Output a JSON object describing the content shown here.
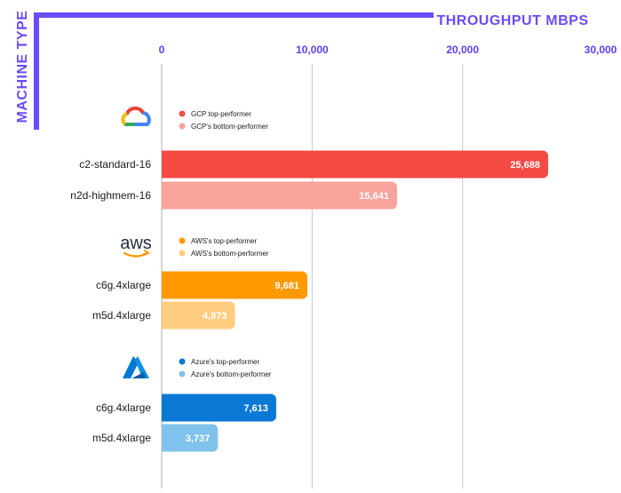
{
  "chart_data": {
    "type": "bar",
    "orientation": "horizontal",
    "xlabel": "THROUGHPUT MBPS",
    "ylabel": "MACHINE TYPE",
    "xlim": [
      0,
      30000
    ],
    "xticks": [
      "0",
      "10,000",
      "20,000",
      "30,000"
    ],
    "grid": "vertical",
    "groups": [
      {
        "provider": "gcp",
        "icon": "gcp-cloud-logo-icon",
        "legend": [
          {
            "label": "GCP top-performer",
            "color": "#f44a44"
          },
          {
            "label": "GCP's bottom-performer",
            "color": "#f9a39d"
          }
        ],
        "bars": [
          {
            "category": "c2-standard-16",
            "value": 25688,
            "label": "25,688",
            "color": "#f44a44"
          },
          {
            "category": "n2d-highmem-16",
            "value": 15641,
            "label": "15,641",
            "color": "#f9a39d"
          }
        ]
      },
      {
        "provider": "aws",
        "icon": "aws-logo-icon",
        "logo_text": "aws",
        "legend": [
          {
            "label": "AWS's top-performer",
            "color": "#ff9900"
          },
          {
            "label": "AWS's bottom-performer",
            "color": "#ffcc80"
          }
        ],
        "bars": [
          {
            "category": "c6g.4xlarge",
            "value": 9681,
            "label": "9,681",
            "color": "#ff9900"
          },
          {
            "category": "m5d.4xlarge",
            "value": 4873,
            "label": "4,873",
            "color": "#ffcc80"
          }
        ]
      },
      {
        "provider": "azure",
        "icon": "azure-logo-icon",
        "legend": [
          {
            "label": "Azure's top-performer",
            "color": "#0a78d4"
          },
          {
            "label": "Azure's bottom-performer",
            "color": "#7fc3ec"
          }
        ],
        "bars": [
          {
            "category": "c6g.4xlarge",
            "value": 7613,
            "label": "7,613",
            "color": "#0a78d4"
          },
          {
            "category": "m5d.4xlarge",
            "value": 3737,
            "label": "3,737",
            "color": "#7fc3ec"
          }
        ]
      }
    ],
    "colors": {
      "axis_accent": "#6a4cf7",
      "grid": "#c8c8c8"
    }
  }
}
